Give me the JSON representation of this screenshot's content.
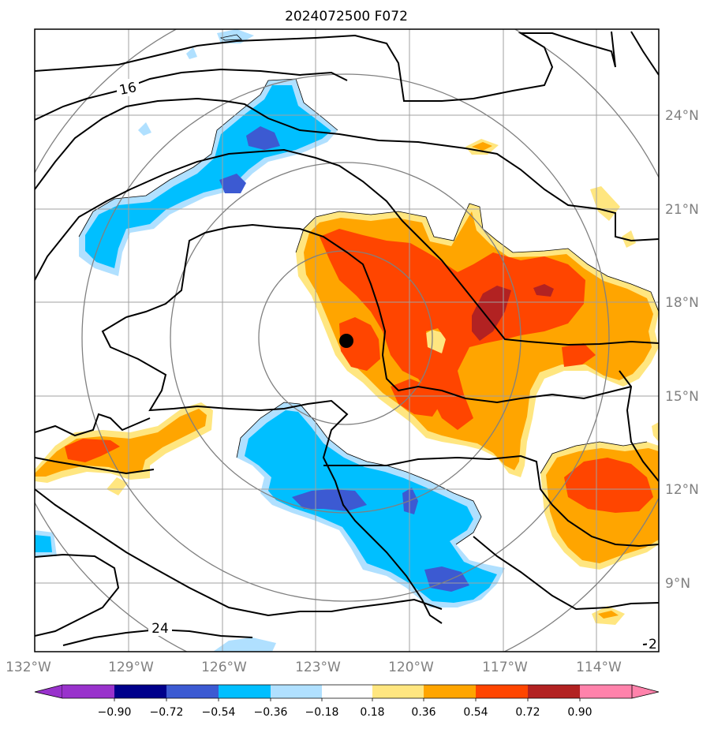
{
  "title": "2024072500 F072",
  "map": {
    "lon_range": [
      -132,
      -112
    ],
    "lat_range": [
      7,
      27
    ],
    "lon_ticks": [
      "132°W",
      "129°W",
      "126°W",
      "123°W",
      "120°W",
      "117°W",
      "114°W"
    ],
    "lat_ticks": [
      "24°N",
      "21°N",
      "18°N",
      "15°N",
      "12°N",
      "9°N"
    ],
    "contour_labels": [
      "16",
      "24",
      "2"
    ],
    "storm_center": {
      "lon": -122,
      "lat": 16.8
    },
    "range_rings": 4,
    "gridlines": true
  },
  "colorbar": {
    "ticks": [
      "−0.90",
      "−0.72",
      "−0.54",
      "−0.36",
      "−0.18",
      "0.18",
      "0.36",
      "0.54",
      "0.72",
      "0.90"
    ],
    "colors": [
      "#9932cc",
      "#00008b",
      "#3c5ad2",
      "#00bfff",
      "#b0e0ff",
      "#ffffff",
      "#ffe680",
      "#ffa500",
      "#ff4500",
      "#b22222",
      "#ff82ab"
    ],
    "extend": "both"
  }
}
